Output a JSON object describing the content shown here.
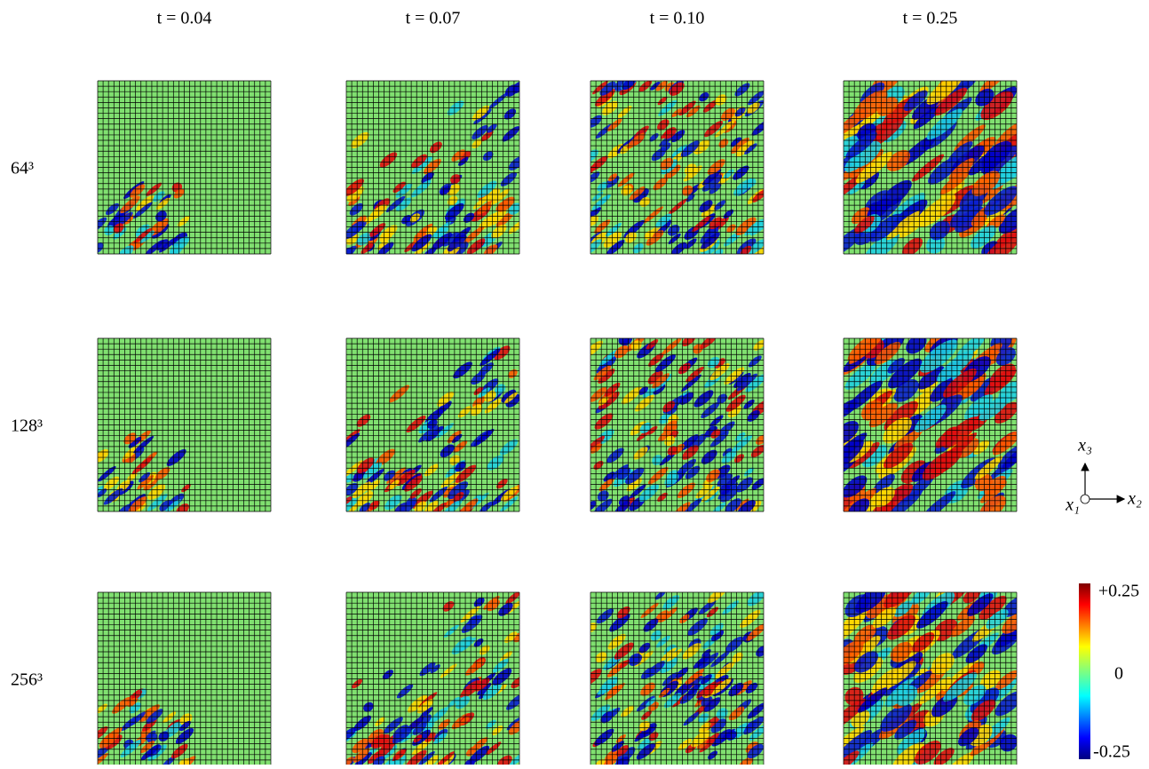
{
  "figure": {
    "columns": [
      "t = 0.04",
      "t = 0.07",
      "t = 0.10",
      "t = 0.25"
    ],
    "rows": [
      "64³",
      "128³",
      "256³"
    ],
    "axes": {
      "vertical": "x₃",
      "normal": "x₁",
      "horizontal": "x₂"
    },
    "colorbar": {
      "max": "+0.25",
      "mid": "0",
      "min": "-0.25"
    }
  }
}
